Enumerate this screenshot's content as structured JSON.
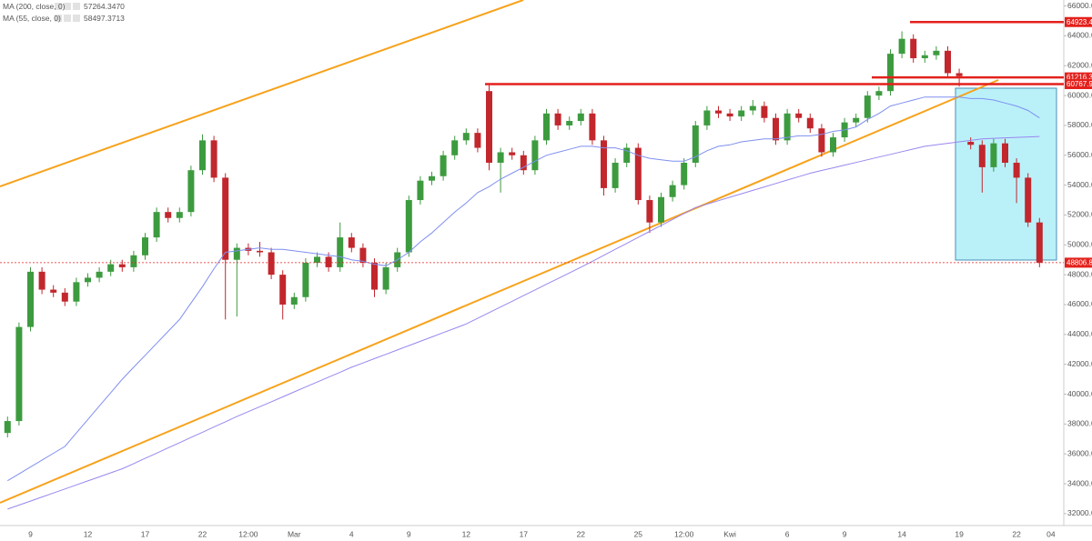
{
  "chart_data": {
    "type": "candlestick",
    "up_color": "#3d9b3f",
    "down_color": "#c1272d",
    "ylim": [
      31200,
      66400
    ],
    "yticks": [
      {
        "value": 32000,
        "label": "32000.00"
      },
      {
        "value": 34000,
        "label": "34000.00"
      },
      {
        "value": 36000,
        "label": "36000.00"
      },
      {
        "value": 38000,
        "label": "38000.00"
      },
      {
        "value": 40000,
        "label": "40000.00"
      },
      {
        "value": 42000,
        "label": "42000.00"
      },
      {
        "value": 44000,
        "label": "44000.00"
      },
      {
        "value": 46000,
        "label": "46000.00"
      },
      {
        "value": 48000,
        "label": "48000.00"
      },
      {
        "value": 50000,
        "label": "50000.00"
      },
      {
        "value": 52000,
        "label": "52000.00"
      },
      {
        "value": 54000,
        "label": "54000.00"
      },
      {
        "value": 56000,
        "label": "56000.00"
      },
      {
        "value": 58000,
        "label": "58000.00"
      },
      {
        "value": 60000,
        "label": "60000.00"
      },
      {
        "value": 62000,
        "label": "62000.00"
      },
      {
        "value": 64000,
        "label": "64000.00"
      },
      {
        "value": 66000,
        "label": "66000.00"
      }
    ],
    "categories": [
      null,
      null,
      "9",
      null,
      null,
      null,
      null,
      "12",
      null,
      null,
      null,
      null,
      "17",
      null,
      null,
      null,
      null,
      "22",
      null,
      null,
      null,
      "12:00",
      null,
      null,
      null,
      "Mar",
      null,
      null,
      null,
      null,
      "4",
      null,
      null,
      null,
      null,
      "9",
      null,
      null,
      null,
      null,
      "12",
      null,
      null,
      null,
      null,
      "17",
      null,
      null,
      null,
      null,
      "22",
      null,
      null,
      null,
      null,
      "25",
      null,
      null,
      null,
      "12:00",
      null,
      null,
      null,
      "Kwi",
      null,
      null,
      null,
      null,
      "6",
      null,
      null,
      null,
      null,
      "9",
      null,
      null,
      null,
      null,
      "14",
      null,
      null,
      null,
      null,
      "19",
      null,
      null,
      null,
      null,
      "22",
      null,
      null,
      "04"
    ],
    "open": [
      37400,
      38200,
      44500,
      48200,
      47000,
      46800,
      46200,
      47500,
      47800,
      48200,
      48700,
      48500,
      49300,
      50500,
      52200,
      51800,
      52200,
      55000,
      57000,
      54500,
      49000,
      49800,
      49600,
      49500,
      48000,
      46000,
      46500,
      48800,
      49200,
      48500,
      50500,
      49800,
      48800,
      47000,
      48500,
      49500,
      53000,
      54300,
      54600,
      56000,
      57000,
      57500,
      60300,
      55500,
      56200,
      56000,
      55000,
      57000,
      58800,
      58000,
      58300,
      58800,
      57000,
      53800,
      55500,
      56500,
      53000,
      51500,
      53200,
      54000,
      55500,
      58000,
      59000,
      58800,
      58600,
      59000,
      59300,
      58500,
      57000,
      58800,
      58500,
      57800,
      56200,
      57200,
      58200,
      58500,
      60000,
      60300,
      62800,
      63800,
      62500,
      62700,
      63000,
      61500,
      56900,
      56700,
      55200,
      56800,
      55500,
      54500,
      51500,
      null
    ],
    "high": [
      38500,
      44800,
      48500,
      48500,
      47300,
      47100,
      47800,
      48100,
      48500,
      49000,
      49000,
      49600,
      50800,
      52500,
      52500,
      52500,
      55300,
      57400,
      57300,
      54800,
      50100,
      50100,
      50200,
      49800,
      48300,
      46800,
      49100,
      49500,
      49500,
      51500,
      50800,
      50100,
      49100,
      48800,
      49800,
      53300,
      54600,
      54900,
      56300,
      57300,
      57800,
      57800,
      60700,
      56500,
      56500,
      56300,
      57300,
      59100,
      59100,
      58600,
      59100,
      59100,
      57300,
      55800,
      56800,
      56800,
      53300,
      53500,
      54300,
      55800,
      58300,
      59300,
      59300,
      59100,
      59300,
      59700,
      59600,
      58800,
      59100,
      59100,
      58800,
      58100,
      57500,
      58500,
      58800,
      60300,
      60600,
      63100,
      64300,
      64100,
      63000,
      63300,
      63300,
      61800,
      57200,
      57000,
      57100,
      57100,
      55800,
      54800,
      51800,
      null
    ],
    "low": [
      37100,
      37900,
      44200,
      46700,
      46500,
      45900,
      45900,
      47200,
      47500,
      47900,
      48200,
      48200,
      49000,
      50200,
      51500,
      51500,
      51900,
      54700,
      54200,
      45000,
      45200,
      49300,
      49200,
      47700,
      45000,
      45700,
      46200,
      48500,
      48200,
      48200,
      49500,
      48500,
      46500,
      46700,
      48200,
      49200,
      52700,
      54000,
      54300,
      55700,
      56700,
      56200,
      55000,
      53500,
      55700,
      54700,
      54700,
      56700,
      57700,
      57700,
      58000,
      56700,
      53300,
      53500,
      55200,
      52700,
      50800,
      51200,
      52900,
      53700,
      55200,
      57700,
      58500,
      58300,
      58300,
      58700,
      58200,
      56700,
      56700,
      58200,
      57500,
      55900,
      55900,
      56900,
      57900,
      58200,
      59700,
      60000,
      62500,
      62200,
      62200,
      62400,
      61200,
      60600,
      56400,
      53500,
      54900,
      55200,
      52800,
      51200,
      48500,
      null
    ],
    "close": [
      38200,
      44500,
      48200,
      47000,
      46800,
      46200,
      47500,
      47800,
      48200,
      48700,
      48500,
      49300,
      50500,
      52200,
      51800,
      52200,
      55000,
      57000,
      54500,
      49000,
      49800,
      49600,
      49500,
      48000,
      46000,
      46500,
      48800,
      49200,
      48500,
      50500,
      49800,
      48800,
      47000,
      48500,
      49500,
      53000,
      54300,
      54600,
      56000,
      57000,
      57500,
      56500,
      55500,
      56200,
      56000,
      55000,
      57000,
      58800,
      58000,
      58300,
      58800,
      57000,
      53800,
      55500,
      56500,
      53000,
      51500,
      53200,
      54000,
      55500,
      58000,
      59000,
      58800,
      58600,
      59000,
      59300,
      58500,
      57000,
      58800,
      58500,
      57800,
      56200,
      57200,
      58200,
      58500,
      60000,
      60300,
      62800,
      63800,
      62500,
      62700,
      63000,
      61500,
      61300,
      56700,
      55200,
      56800,
      55500,
      54500,
      51500,
      48800,
      null
    ],
    "series": [
      {
        "name": "MA (200, close, 0)",
        "color": "#9a86ee",
        "legend_value": {
          "value": 57264.347,
          "label": "57264.3470"
        },
        "values": [
          32300,
          32570,
          32840,
          33110,
          33380,
          33650,
          33920,
          34190,
          34460,
          34730,
          35000,
          35350,
          35700,
          36050,
          36400,
          36750,
          37100,
          37450,
          37800,
          38150,
          38500,
          38830,
          39160,
          39490,
          39820,
          40150,
          40480,
          40810,
          41140,
          41470,
          41800,
          42090,
          42380,
          42670,
          42960,
          43250,
          43540,
          43830,
          44120,
          44410,
          44700,
          45080,
          45460,
          45840,
          46220,
          46600,
          46980,
          47360,
          47740,
          48120,
          48500,
          48900,
          49300,
          49700,
          50100,
          50500,
          50900,
          51300,
          51700,
          52100,
          52500,
          52730,
          52960,
          53190,
          53420,
          53650,
          53880,
          54110,
          54340,
          54570,
          54800,
          54980,
          55160,
          55340,
          55520,
          55700,
          55880,
          56060,
          56240,
          56420,
          56600,
          56700,
          56800,
          56900,
          57000,
          57100,
          57140,
          57170,
          57200,
          57230,
          57260,
          null
        ]
      },
      {
        "name": "MA (55, close, 0)",
        "color": "#7f8ff0",
        "legend_value": {
          "value": 58497.3713,
          "label": "58497.3713"
        },
        "values": [
          34200,
          34660,
          35120,
          35580,
          36040,
          36500,
          37400,
          38300,
          39200,
          40100,
          41000,
          41800,
          42600,
          43400,
          44200,
          45000,
          46100,
          47200,
          48400,
          49500,
          49600,
          49700,
          49800,
          49700,
          49700,
          49600,
          49500,
          49400,
          49300,
          49200,
          49000,
          48900,
          48700,
          48600,
          49000,
          49500,
          50200,
          50800,
          51500,
          52200,
          52800,
          53500,
          53900,
          54400,
          54800,
          55200,
          55600,
          56000,
          56200,
          56400,
          56600,
          56600,
          56500,
          56500,
          56300,
          56000,
          55800,
          55700,
          55600,
          55600,
          55900,
          56300,
          56600,
          56700,
          56900,
          57000,
          57100,
          57100,
          57200,
          57300,
          57300,
          57400,
          57600,
          57700,
          57900,
          58400,
          58800,
          59300,
          59500,
          59700,
          59900,
          59900,
          59900,
          59900,
          59800,
          59800,
          59700,
          59500,
          59300,
          59000,
          58500,
          null
        ]
      }
    ],
    "level_color": "#e3211c",
    "levels": [
      64923.45,
      61216.32,
      60767.92,
      48806.86
    ]
  }
}
